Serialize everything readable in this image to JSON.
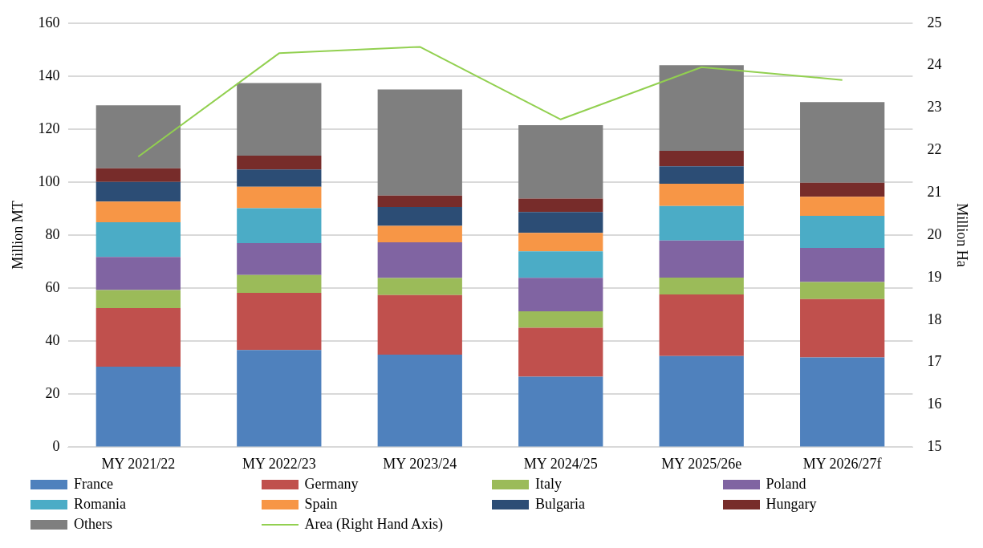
{
  "chart_data": {
    "type": "bar",
    "stacked": true,
    "categories": [
      "MY 2021/22",
      "MY 2022/23",
      "MY 2023/24",
      "MY 2024/25",
      "MY 2025/26e",
      "MY 2026/27f"
    ],
    "ylabel": "Million MT",
    "y2label": "Million Ha",
    "ylim": [
      0,
      160
    ],
    "yticks": [
      0,
      20,
      40,
      60,
      80,
      100,
      120,
      140,
      160
    ],
    "y2lim": [
      15,
      25
    ],
    "y2ticks": [
      15,
      16,
      17,
      18,
      19,
      20,
      21,
      22,
      23,
      24,
      25
    ],
    "grid": "y",
    "legend": "bottom",
    "series": [
      {
        "name": "France",
        "color": "#4f81bd",
        "values": [
          30.4,
          36.7,
          34.9,
          26.6,
          34.4,
          33.9
        ]
      },
      {
        "name": "Germany",
        "color": "#c0504d",
        "values": [
          22.1,
          21.5,
          22.5,
          18.5,
          23.2,
          22.0
        ]
      },
      {
        "name": "Italy",
        "color": "#9bbb59",
        "values": [
          6.8,
          6.8,
          6.4,
          6.2,
          6.4,
          6.4
        ]
      },
      {
        "name": "Poland",
        "color": "#8064a2",
        "values": [
          12.5,
          12.0,
          13.5,
          12.6,
          14.0,
          12.9
        ]
      },
      {
        "name": "Romania",
        "color": "#4bacc6",
        "values": [
          13.1,
          13.2,
          0,
          10.0,
          13.0,
          12.1
        ]
      },
      {
        "name": "Spain",
        "color": "#f79646",
        "values": [
          7.8,
          8.1,
          6.2,
          7.0,
          8.4,
          7.2
        ]
      },
      {
        "name": "Bulgaria",
        "color": "#2c4d75",
        "values": [
          7.4,
          6.5,
          7.1,
          7.8,
          6.6,
          0
        ]
      },
      {
        "name": "Hungary",
        "color": "#772c2a",
        "values": [
          5.1,
          5.2,
          4.3,
          5.1,
          5.8,
          5.3
        ]
      },
      {
        "name": "Others",
        "color": "#7f7f7f",
        "values": [
          23.8,
          27.4,
          40.1,
          27.7,
          32.3,
          30.4
        ]
      },
      {
        "name": "Area (Right Hand Axis)",
        "type": "line",
        "axis": "y2",
        "color": "#92d050",
        "values": [
          21.85,
          24.29,
          24.44,
          22.73,
          23.96,
          23.66
        ]
      }
    ]
  }
}
